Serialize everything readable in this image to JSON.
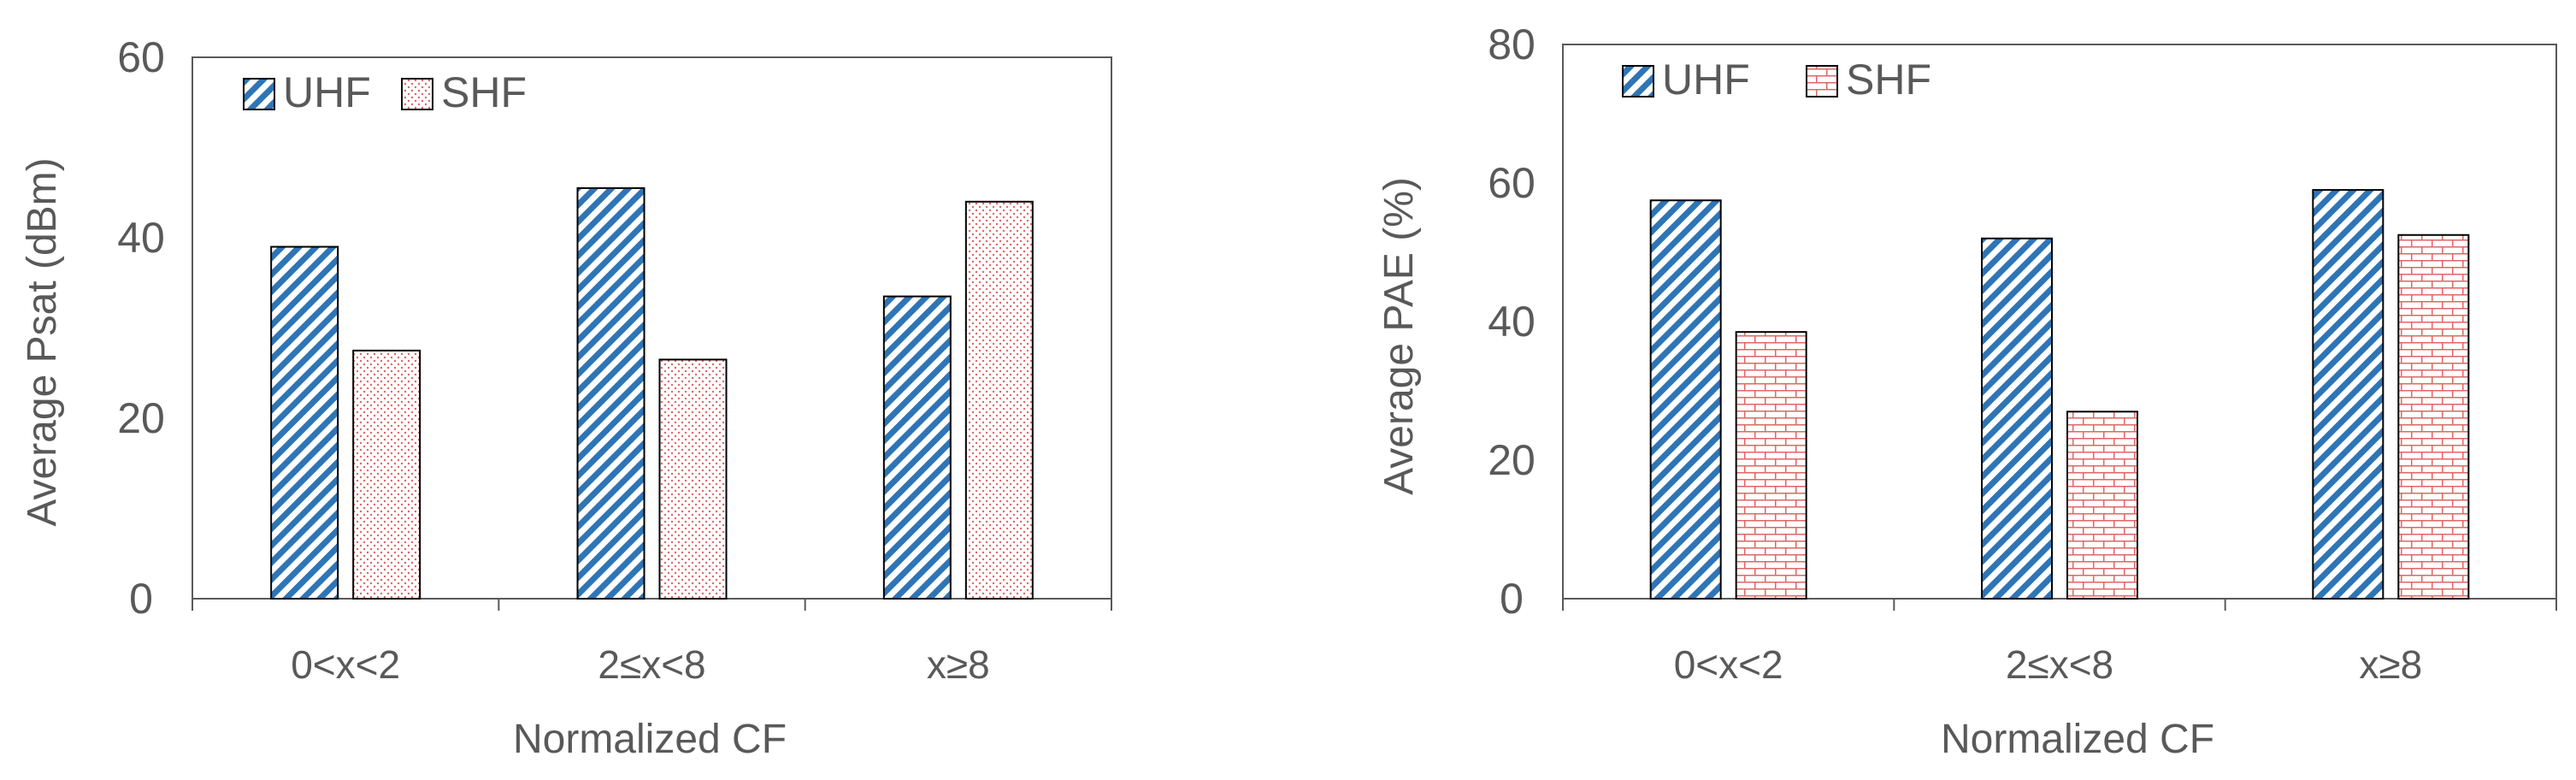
{
  "chart_data": [
    {
      "type": "bar",
      "title": "",
      "xlabel": "Normalized CF",
      "ylabel": "Average Psat (dBm)",
      "categories": [
        "0<x<2",
        "2≤x<8",
        "x≥8"
      ],
      "series": [
        {
          "name": "UHF",
          "values": [
            39,
            45.5,
            33.5
          ],
          "pattern": "diagonal-stripes",
          "color": "#2E75B6"
        },
        {
          "name": "SHF",
          "values": [
            27.5,
            26.5,
            44
          ],
          "pattern": "dots",
          "color": "#E06666"
        }
      ],
      "ylim": [
        0,
        60
      ],
      "yticks": [
        "0",
        "20",
        "40",
        "60"
      ],
      "grid": false,
      "legend_position": "top-left"
    },
    {
      "type": "bar",
      "title": "",
      "xlabel": "Normalized CF",
      "ylabel": "Average PAE (%)",
      "categories": [
        "0<x<2",
        "2≤x<8",
        "x≥8"
      ],
      "series": [
        {
          "name": "UHF",
          "values": [
            57.5,
            52,
            59
          ],
          "pattern": "diagonal-stripes",
          "color": "#2E75B6"
        },
        {
          "name": "SHF",
          "values": [
            38.5,
            27,
            52.5
          ],
          "pattern": "bricks",
          "color": "#E06666"
        }
      ],
      "ylim": [
        0,
        80
      ],
      "yticks": [
        "0",
        "20",
        "40",
        "60",
        "80"
      ],
      "grid": false,
      "legend_position": "top-left"
    }
  ]
}
